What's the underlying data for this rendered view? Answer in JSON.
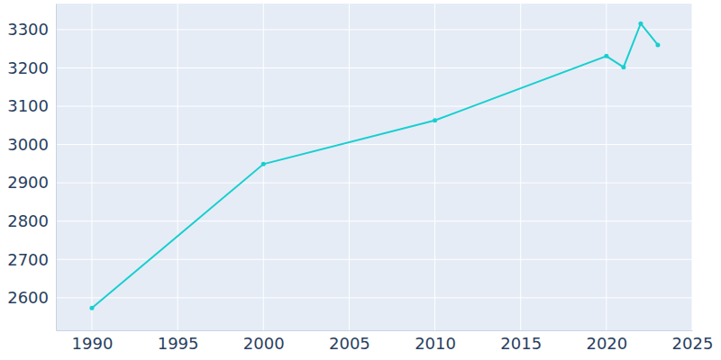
{
  "chart_data": {
    "type": "line",
    "x": [
      1990,
      2000,
      2010,
      2020,
      2021,
      2022,
      2023
    ],
    "values": [
      2573,
      2949,
      3063,
      3231,
      3202,
      3316,
      3260
    ],
    "color": "#17cfcf",
    "marker": "circle",
    "xlim": [
      1987.9,
      2025
    ],
    "xticks": [
      1990,
      1995,
      2000,
      2005,
      2010,
      2015,
      2020,
      2025
    ],
    "ylim": [
      2515,
      3368
    ],
    "yticks": [
      2600,
      2700,
      2800,
      2900,
      3000,
      3100,
      3200,
      3300
    ],
    "grid": true
  }
}
